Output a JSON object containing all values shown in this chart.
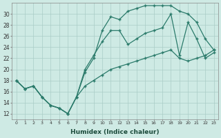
{
  "xlabel": "Humidex (Indice chaleur)",
  "bg_color": "#ceeae4",
  "grid_color": "#aaccc6",
  "line_color": "#2a7a6a",
  "xlim": [
    -0.5,
    23.5
  ],
  "ylim": [
    11,
    32
  ],
  "xticks": [
    0,
    1,
    2,
    3,
    4,
    5,
    6,
    7,
    8,
    9,
    10,
    11,
    12,
    13,
    14,
    15,
    16,
    17,
    18,
    19,
    20,
    21,
    22,
    23
  ],
  "yticks": [
    12,
    14,
    16,
    18,
    20,
    22,
    24,
    26,
    28,
    30
  ],
  "line1_x": [
    0,
    1,
    2,
    3,
    4,
    5,
    6,
    7,
    8,
    9,
    10,
    11,
    12,
    13,
    14,
    15,
    16,
    17,
    18,
    19,
    20,
    21,
    22,
    23
  ],
  "line1_y": [
    18,
    16.5,
    17,
    15,
    13.5,
    13,
    12,
    15,
    19.5,
    22,
    27,
    29.5,
    29,
    30.5,
    31,
    31.5,
    31.5,
    31.5,
    31.5,
    30.5,
    30,
    28.5,
    25.5,
    23.5
  ],
  "line2_x": [
    0,
    1,
    2,
    3,
    4,
    5,
    6,
    7,
    8,
    9,
    10,
    11,
    12,
    13,
    14,
    15,
    16,
    17,
    18,
    19,
    20,
    21,
    22,
    23
  ],
  "line2_y": [
    18,
    16.5,
    17,
    15,
    13.5,
    13,
    12,
    15,
    20,
    22.5,
    25,
    27,
    27,
    24.5,
    25.5,
    26.5,
    27,
    27.5,
    30,
    22.5,
    28.5,
    25.5,
    22,
    23
  ],
  "line3_x": [
    0,
    1,
    2,
    3,
    4,
    5,
    6,
    7,
    8,
    9,
    10,
    11,
    12,
    13,
    14,
    15,
    16,
    17,
    18,
    19,
    20,
    21,
    22,
    23
  ],
  "line3_y": [
    18,
    16.5,
    17,
    15,
    13.5,
    13,
    12,
    15,
    17,
    18,
    19,
    20,
    20.5,
    21,
    21.5,
    22,
    22.5,
    23,
    23.5,
    22,
    21.5,
    22,
    22.5,
    23.5
  ]
}
